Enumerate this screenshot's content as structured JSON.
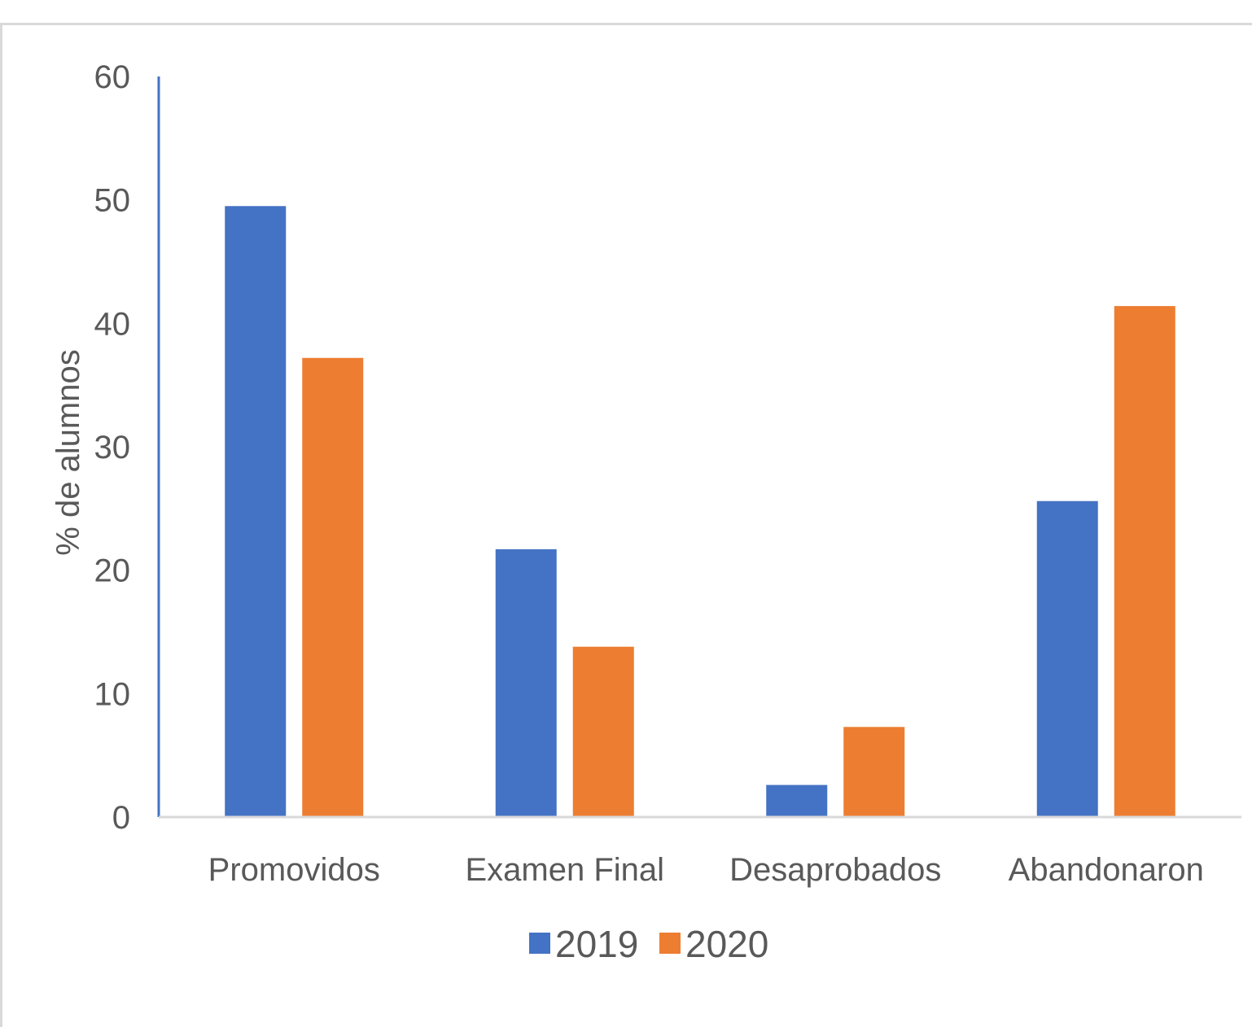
{
  "chart_data": {
    "type": "bar",
    "title": "",
    "xlabel": "",
    "ylabel": "% de alumnos",
    "categories": [
      "Promovidos",
      "Examen Final",
      "Desaprobados",
      "Abandonaron"
    ],
    "series": [
      {
        "name": "2019",
        "values": [
          49.5,
          21.7,
          2.6,
          25.6
        ],
        "color": "#4472c4"
      },
      {
        "name": "2020",
        "values": [
          37.2,
          13.8,
          7.3,
          41.4
        ],
        "color": "#ed7d31"
      }
    ],
    "ylim": [
      0,
      60
    ],
    "yticks": [
      "0",
      "10",
      "20",
      "30",
      "40",
      "50",
      "60"
    ],
    "grid": false,
    "legend_position": "bottom-center",
    "axis_color": "#4472c4",
    "baseline_color": "#d9d9d9"
  }
}
